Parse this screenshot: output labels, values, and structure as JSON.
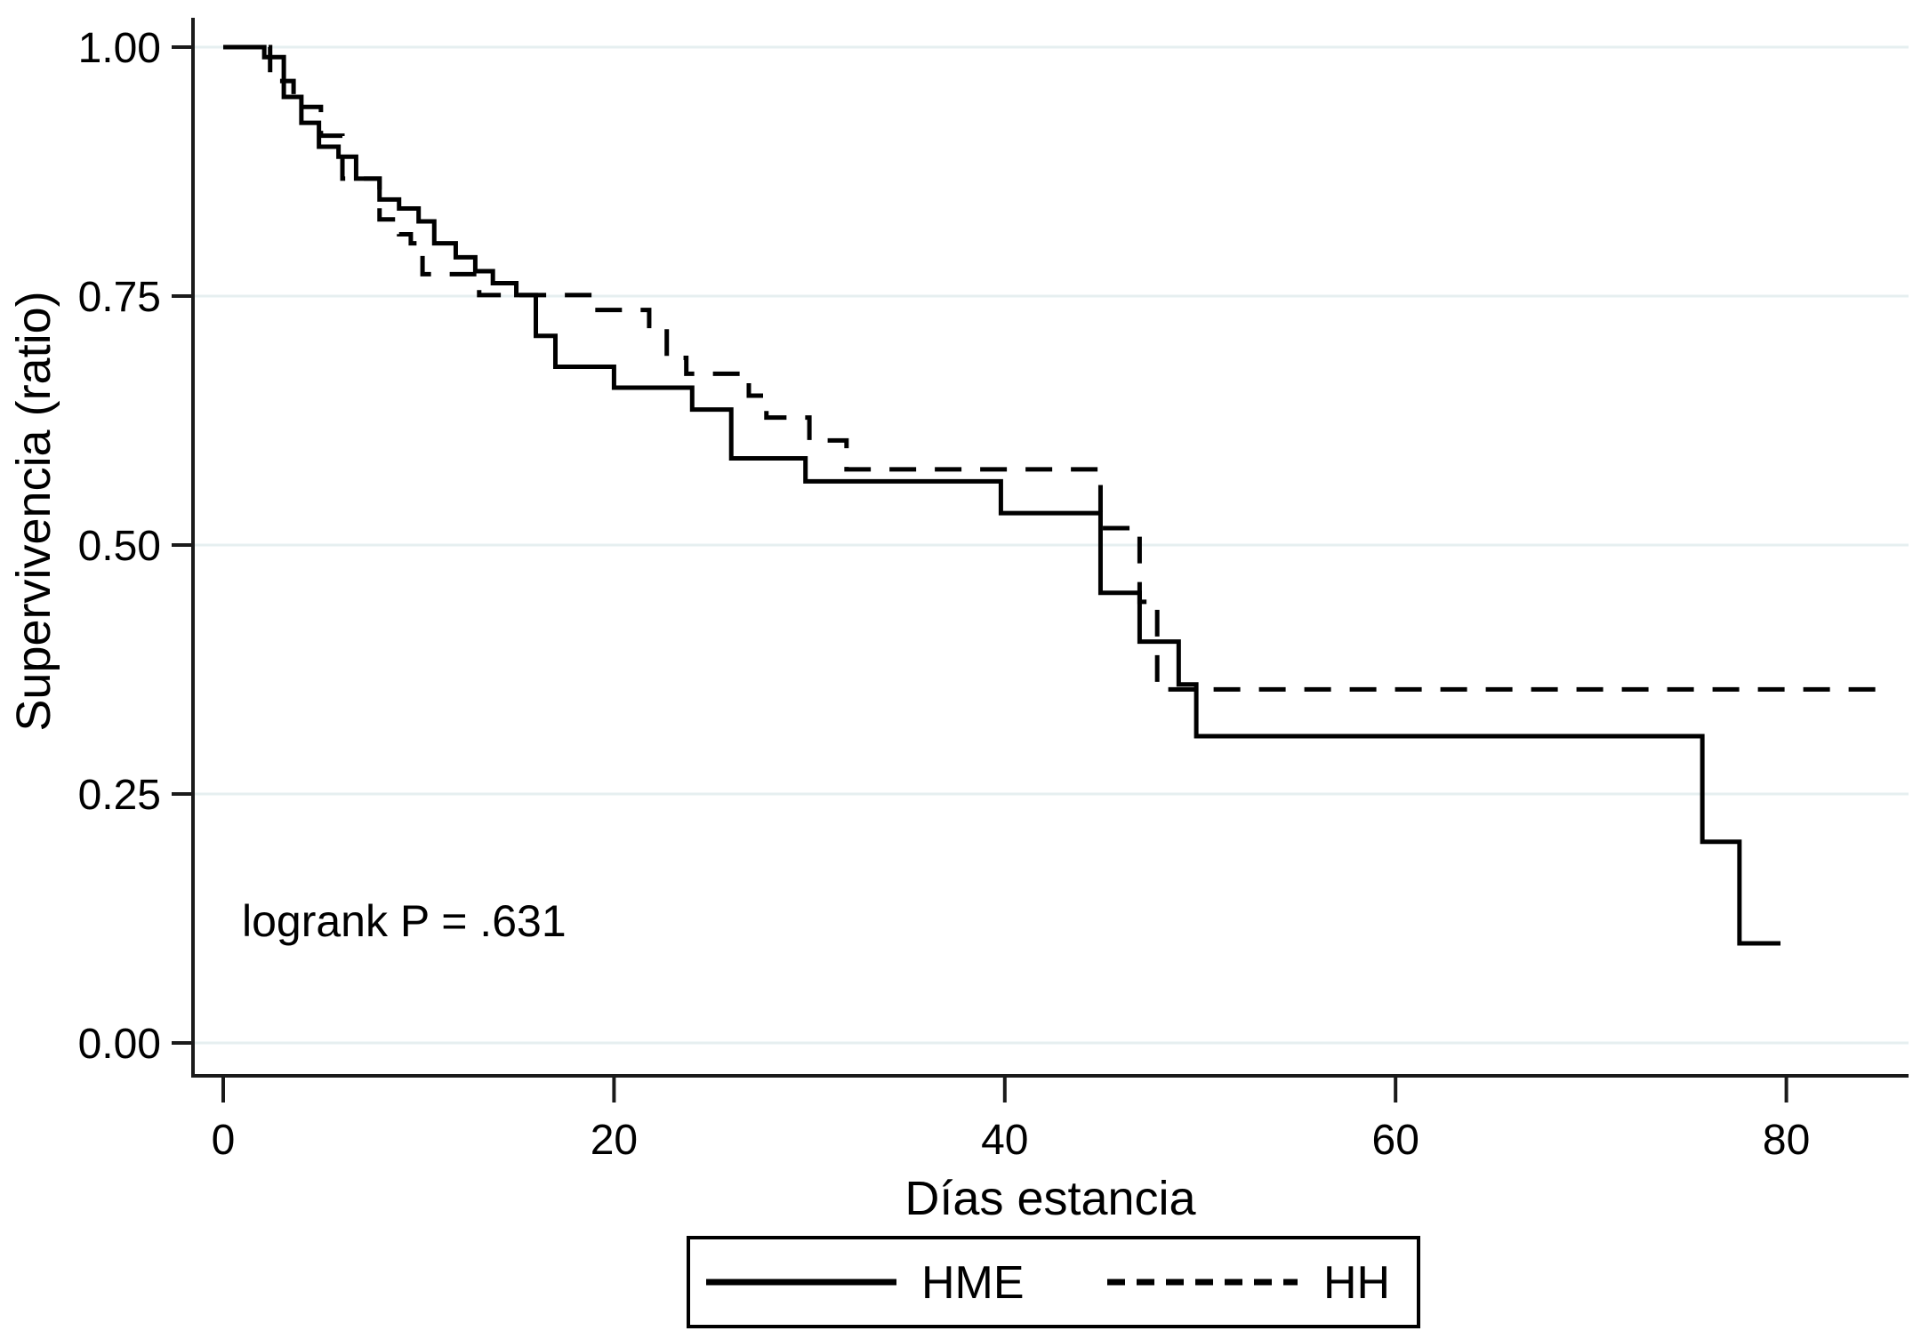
{
  "chart_data": {
    "type": "line",
    "subtype": "kaplan-meier-step",
    "title": "",
    "xlabel": "Días estancia",
    "ylabel": "Supervivencia (ratio)",
    "annotation": "logrank P = .631",
    "xlim": [
      0,
      86
    ],
    "ylim": [
      0,
      1.0
    ],
    "grid": "horizontal",
    "x_ticks": [
      {
        "label": "0",
        "value": 0
      },
      {
        "label": "20",
        "value": 20
      },
      {
        "label": "40",
        "value": 40
      },
      {
        "label": "60",
        "value": 60
      },
      {
        "label": "80",
        "value": 80
      }
    ],
    "y_ticks": [
      {
        "label": "0.00",
        "value": 0
      },
      {
        "label": "0.25",
        "value": 0.25
      },
      {
        "label": "0.50",
        "value": 0.5
      },
      {
        "label": "0.75",
        "value": 0.75
      },
      {
        "label": "1.00",
        "value": 1
      }
    ],
    "gridline_values": [
      0,
      0.25,
      0.5,
      0.75,
      1
    ],
    "legend": {
      "position": "bottom-center",
      "entries": [
        {
          "label": "HME",
          "line": "solid"
        },
        {
          "label": "HH",
          "line": "dashed"
        }
      ]
    },
    "series": [
      {
        "name": "HME",
        "line": "solid",
        "color": "#000000",
        "start_value": 1.0,
        "end_day": 79.7,
        "steps": [
          [
            2.1,
            0.99
          ],
          [
            3.1,
            0.95
          ],
          [
            4.0,
            0.924
          ],
          [
            4.9,
            0.9
          ],
          [
            5.9,
            0.89
          ],
          [
            6.8,
            0.868
          ],
          [
            8.0,
            0.847
          ],
          [
            9.0,
            0.838
          ],
          [
            10.0,
            0.825
          ],
          [
            10.8,
            0.803
          ],
          [
            11.9,
            0.789
          ],
          [
            12.9,
            0.775
          ],
          [
            13.8,
            0.763
          ],
          [
            15.0,
            0.751
          ],
          [
            16.0,
            0.71
          ],
          [
            17.0,
            0.679
          ],
          [
            20.0,
            0.658
          ],
          [
            24.0,
            0.636
          ],
          [
            26.0,
            0.587
          ],
          [
            29.8,
            0.564
          ],
          [
            39.8,
            0.532
          ],
          [
            44.9,
            0.452
          ],
          [
            46.9,
            0.403
          ],
          [
            48.9,
            0.36
          ],
          [
            49.8,
            0.308
          ],
          [
            75.7,
            0.202
          ],
          [
            77.6,
            0.1
          ]
        ]
      },
      {
        "name": "HH",
        "line": "dashed",
        "color": "#000000",
        "start_value": 1.0,
        "end_day": 84.6,
        "steps": [
          [
            2.4,
            0.966
          ],
          [
            3.6,
            0.94
          ],
          [
            5.0,
            0.911
          ],
          [
            6.1,
            0.868
          ],
          [
            8.0,
            0.827
          ],
          [
            9.0,
            0.812
          ],
          [
            9.6,
            0.803
          ],
          [
            10.2,
            0.772
          ],
          [
            13.1,
            0.751
          ],
          [
            19.0,
            0.736
          ],
          [
            21.8,
            0.72
          ],
          [
            22.7,
            0.688
          ],
          [
            23.7,
            0.672
          ],
          [
            26.9,
            0.65
          ],
          [
            27.8,
            0.628
          ],
          [
            30.0,
            0.605
          ],
          [
            31.9,
            0.576
          ],
          [
            44.9,
            0.517
          ],
          [
            46.9,
            0.443
          ],
          [
            47.8,
            0.355
          ]
        ]
      }
    ],
    "colors": {
      "line": "#000000",
      "grid": "#e6eff0",
      "axis": "#1a1a1a",
      "background": "#ffffff"
    }
  }
}
